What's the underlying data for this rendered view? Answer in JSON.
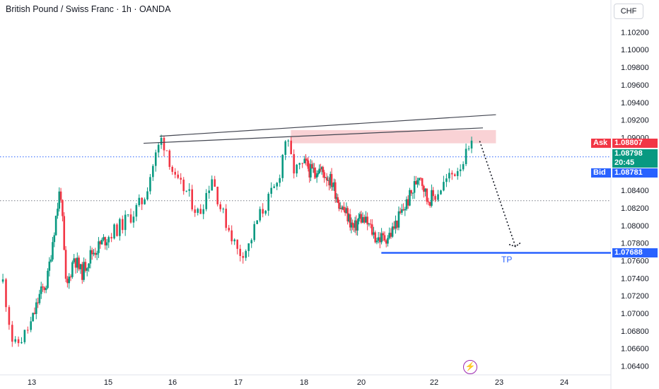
{
  "header": {
    "title": "British Pound / Swiss Franc · 1h · OANDA"
  },
  "currency_button": "CHF",
  "price_tags": {
    "ask_label": "Ask",
    "ask_value": "1.08807",
    "last_value": "1.08798",
    "countdown": "20:45",
    "bid_label": "Bid",
    "bid_value": "1.08781",
    "tp_value": "1.07688",
    "tp_label": "TP"
  },
  "colors": {
    "up": "#089981",
    "down": "#f23645",
    "zone": "#f7c3c7",
    "tp_line": "#2962ff",
    "ask": "#f23645",
    "bid": "#2962ff"
  },
  "icons": {
    "event": "lightning-icon"
  },
  "chart_data": {
    "type": "candlestick",
    "title": "British Pound / Swiss Franc · 1h · OANDA",
    "x_ticks": [
      "13",
      "15",
      "16",
      "17",
      "18",
      "20",
      "22",
      "23",
      "24"
    ],
    "y_ticks": [
      "1.10200",
      "1.10000",
      "1.09800",
      "1.09600",
      "1.09400",
      "1.09200",
      "1.09000",
      "1.08800",
      "1.08600",
      "1.08400",
      "1.08200",
      "1.08000",
      "1.07800",
      "1.07600",
      "1.07400",
      "1.07200",
      "1.07000",
      "1.06800",
      "1.06600",
      "1.06400"
    ],
    "ylim": [
      1.063,
      1.1034
    ],
    "x_range": [
      12.56,
      25.0
    ],
    "price_path": [
      [
        12.6,
        1.0736
      ],
      [
        12.75,
        1.066
      ],
      [
        12.9,
        1.0676
      ],
      [
        13.0,
        1.069
      ],
      [
        13.2,
        1.072
      ],
      [
        13.4,
        1.0736
      ],
      [
        13.55,
        1.0785
      ],
      [
        13.75,
        1.0845
      ],
      [
        13.9,
        1.0725
      ],
      [
        14.1,
        1.0765
      ],
      [
        14.3,
        1.0745
      ],
      [
        14.55,
        1.0768
      ],
      [
        14.75,
        1.0776
      ],
      [
        15.0,
        1.0788
      ],
      [
        15.2,
        1.08
      ],
      [
        15.4,
        1.0815
      ],
      [
        15.55,
        1.083
      ],
      [
        15.7,
        1.087
      ],
      [
        15.82,
        1.0898
      ],
      [
        15.9,
        1.089
      ],
      [
        16.05,
        1.0848
      ],
      [
        16.2,
        1.084
      ],
      [
        16.4,
        1.0812
      ],
      [
        16.6,
        1.0856
      ],
      [
        16.75,
        1.0815
      ],
      [
        16.9,
        1.0789
      ],
      [
        17.0,
        1.0768
      ],
      [
        17.15,
        1.0775
      ],
      [
        17.3,
        1.0808
      ],
      [
        17.45,
        1.0828
      ],
      [
        17.6,
        1.0848
      ],
      [
        17.72,
        1.09
      ],
      [
        17.85,
        1.0862
      ],
      [
        18.05,
        1.087
      ],
      [
        18.25,
        1.086
      ],
      [
        18.5,
        1.0865
      ],
      [
        18.75,
        1.0858
      ],
      [
        19.0,
        1.0848
      ],
      [
        19.25,
        1.0824
      ],
      [
        19.5,
        1.0812
      ],
      [
        19.75,
        1.0795
      ],
      [
        19.95,
        1.081
      ],
      [
        20.2,
        1.08
      ],
      [
        20.4,
        1.0786
      ],
      [
        20.6,
        1.0785
      ],
      [
        20.8,
        1.079
      ],
      [
        21.0,
        1.0806
      ],
      [
        21.2,
        1.0822
      ],
      [
        21.4,
        1.0838
      ],
      [
        21.6,
        1.0862
      ],
      [
        21.8,
        1.083
      ],
      [
        22.0,
        1.0833
      ],
      [
        22.15,
        1.0848
      ],
      [
        22.3,
        1.086
      ],
      [
        22.5,
        1.088
      ],
      [
        22.6,
        1.089
      ]
    ],
    "resistance_lines": [
      {
        "x1": 15.8,
        "y1": 1.09015,
        "x2": 22.95,
        "y2": 1.0926
      },
      {
        "x1": 15.55,
        "y1": 1.08935,
        "x2": 22.75,
        "y2": 1.0911
      }
    ],
    "supply_zone": {
      "x1": 17.8,
      "x2": 22.95,
      "y_low": 1.08935,
      "y_high": 1.09085
    },
    "forecast_arrow": {
      "x1": 22.7,
      "y1": 1.0896,
      "x2": 23.25,
      "y2": 1.0776
    },
    "dotted_levels": [
      1.08781,
      1.08282
    ],
    "tp": {
      "level": 1.07688,
      "x_start": 20.55
    }
  }
}
